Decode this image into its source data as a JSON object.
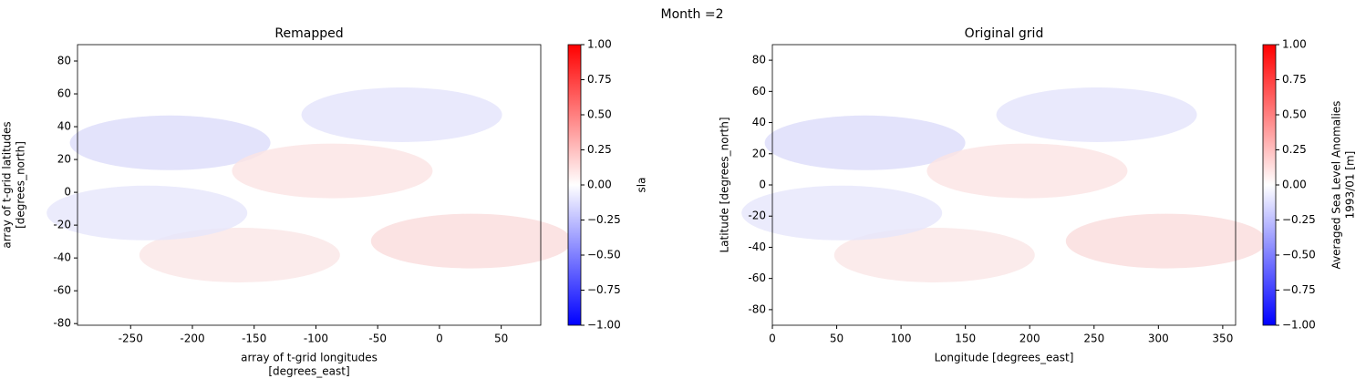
{
  "title": "Month =2",
  "chart_data": [
    {
      "type": "heatmap",
      "title": "Remapped",
      "xlabel": [
        "array of t-grid longitudes",
        "[degrees_east]"
      ],
      "ylabel": [
        "array of t-grid latitudes",
        "[degrees_north]"
      ],
      "xlim": [
        -293,
        82
      ],
      "xticks": [
        -250,
        -200,
        -150,
        -100,
        -50,
        0,
        50
      ],
      "ylim": [
        -81,
        90
      ],
      "yticks": [
        -80,
        -60,
        -40,
        -20,
        0,
        20,
        40,
        60,
        80
      ],
      "colorbar": {
        "label": [
          "sla"
        ],
        "clim": [
          -1,
          1
        ],
        "cmap": [
          "#0000ff",
          "#ffffff",
          "#ff0000"
        ],
        "ticks": [
          {
            "value": -1,
            "label": "−1.00"
          },
          {
            "value": -0.75,
            "label": "−0.75"
          },
          {
            "value": -0.5,
            "label": "−0.50"
          },
          {
            "value": -0.25,
            "label": "−0.25"
          },
          {
            "value": 0,
            "label": "0.00"
          },
          {
            "value": 0.25,
            "label": "0.25"
          },
          {
            "value": 0.5,
            "label": "0.50"
          },
          {
            "value": 0.75,
            "label": "0.75"
          },
          {
            "value": 1,
            "label": "1.00"
          }
        ]
      }
    },
    {
      "type": "heatmap",
      "title": "Original grid",
      "xlabel": [
        "Longitude [degrees_east]"
      ],
      "ylabel": [
        "Latitude [degrees_north]"
      ],
      "xlim": [
        0,
        360
      ],
      "xticks": [
        0,
        50,
        100,
        150,
        200,
        250,
        300,
        350
      ],
      "ylim": [
        -90,
        90
      ],
      "yticks": [
        -80,
        -60,
        -40,
        -20,
        0,
        20,
        40,
        60,
        80
      ],
      "colorbar": {
        "label": [
          "Averaged Sea Level Anomalies",
          "1993/01 [m]"
        ],
        "clim": [
          -1,
          1
        ],
        "cmap": [
          "#0000ff",
          "#ffffff",
          "#ff0000"
        ],
        "ticks": [
          {
            "value": -1,
            "label": "−1.00"
          },
          {
            "value": -0.75,
            "label": "−0.75"
          },
          {
            "value": -0.5,
            "label": "−0.50"
          },
          {
            "value": -0.25,
            "label": "−0.25"
          },
          {
            "value": 0,
            "label": "0.00"
          },
          {
            "value": 0.25,
            "label": "0.25"
          },
          {
            "value": 0.5,
            "label": "0.50"
          },
          {
            "value": 0.75,
            "label": "0.75"
          },
          {
            "value": 1,
            "label": "1.00"
          }
        ]
      }
    }
  ]
}
